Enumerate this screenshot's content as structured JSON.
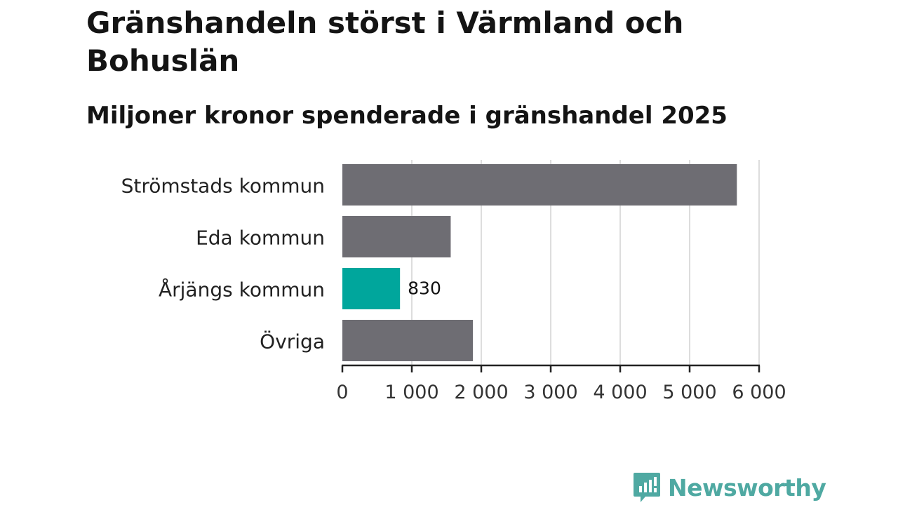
{
  "title": "Gränshandeln störst i Värmland och Bohuslän",
  "subtitle": "Miljoner kronor spenderade i gränshandel 2025",
  "brand": {
    "name": "Newsworthy",
    "color": "#4fa9a2",
    "icon": "newsworthy-logo-icon"
  },
  "colors": {
    "default_bar": "#6e6d73",
    "highlight_bar": "#00a69c",
    "grid": "#dddddd",
    "axis": "#222222"
  },
  "chart_data": {
    "type": "bar",
    "orientation": "horizontal",
    "categories": [
      "Strömstads kommun",
      "Eda kommun",
      "Årjängs kommun",
      "Övriga"
    ],
    "values": [
      5680,
      1560,
      830,
      1880
    ],
    "highlight": [
      false,
      false,
      true,
      false
    ],
    "data_labels": [
      "",
      "",
      "830",
      ""
    ],
    "xlim": [
      0,
      6000
    ],
    "xticks": [
      0,
      1000,
      2000,
      3000,
      4000,
      5000,
      6000
    ],
    "xtick_labels": [
      "0",
      "1 000",
      "2 000",
      "3 000",
      "4 000",
      "5 000",
      "6 000"
    ],
    "grid": true,
    "xlabel": "",
    "ylabel": ""
  }
}
